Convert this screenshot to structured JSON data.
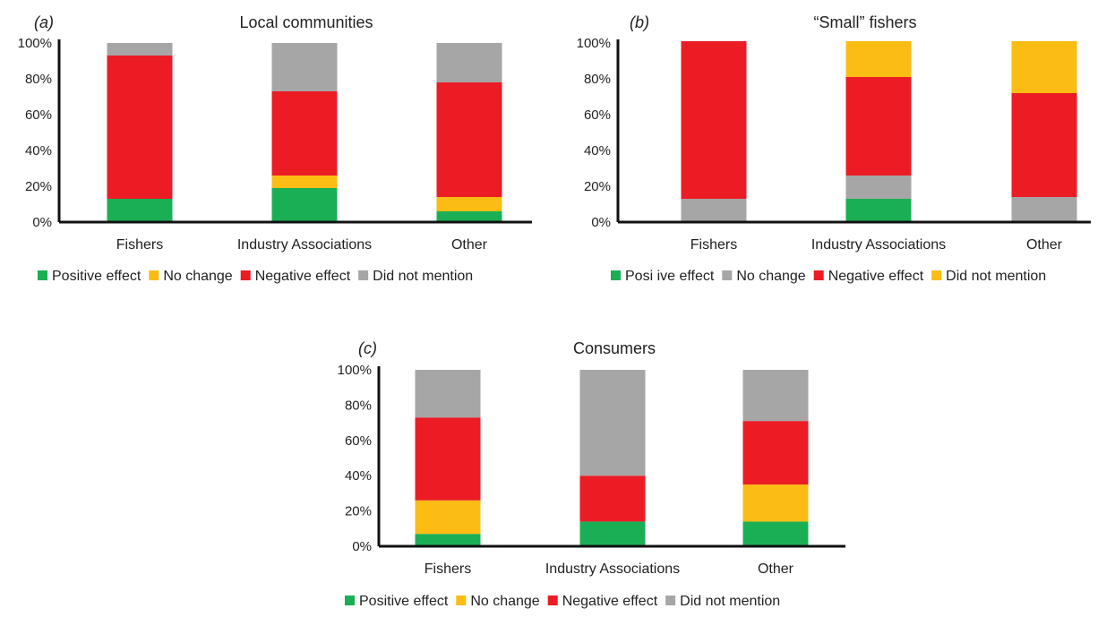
{
  "chart_data": [
    {
      "type": "bar",
      "stacked": true,
      "panel_label": "(a)",
      "title": "Local communities",
      "categories": [
        "Fishers",
        "Industry Associations",
        "Other"
      ],
      "y_ticks": [
        "0%",
        "20%",
        "40%",
        "60%",
        "80%",
        "100%"
      ],
      "ylim": [
        0,
        100
      ],
      "series": [
        {
          "name": "Positive effect",
          "color": "#1aaf54",
          "values": [
            13,
            19,
            6
          ]
        },
        {
          "name": "No change",
          "color": "#fbbd13",
          "values": [
            0,
            7,
            8
          ]
        },
        {
          "name": "Negative effect",
          "color": "#ec1c24",
          "values": [
            80,
            47,
            64
          ]
        },
        {
          "name": "Did not mention",
          "color": "#a6a6a6",
          "values": [
            7,
            27,
            22
          ]
        }
      ],
      "legend_position": "bottom"
    },
    {
      "type": "bar",
      "stacked": true,
      "panel_label": "(b)",
      "title": "“Small” fishers",
      "categories": [
        "Fishers",
        "Industry Associations",
        "Other"
      ],
      "y_ticks": [
        "0%",
        "20%",
        "40%",
        "60%",
        "80%",
        "100%"
      ],
      "ylim": [
        0,
        100
      ],
      "series": [
        {
          "name": "Posi ive effect",
          "color": "#1aaf54",
          "values": [
            0,
            13,
            0
          ]
        },
        {
          "name": "No change",
          "color": "#a6a6a6",
          "values": [
            13,
            13,
            14
          ]
        },
        {
          "name": "Negative effect",
          "color": "#ec1c24",
          "values": [
            88,
            55,
            58
          ]
        },
        {
          "name": "Did not mention",
          "color": "#fbbd13",
          "values": [
            0,
            20,
            29
          ]
        }
      ],
      "legend_position": "bottom"
    },
    {
      "type": "bar",
      "stacked": true,
      "panel_label": "(c)",
      "title": "Consumers",
      "categories": [
        "Fishers",
        "Industry Associations",
        "Other"
      ],
      "y_ticks": [
        "0%",
        "20%",
        "40%",
        "60%",
        "80%",
        "100%"
      ],
      "ylim": [
        0,
        100
      ],
      "series": [
        {
          "name": "Positive effect",
          "color": "#1aaf54",
          "values": [
            7,
            14,
            14
          ]
        },
        {
          "name": "No change",
          "color": "#fbbd13",
          "values": [
            19,
            0,
            21
          ]
        },
        {
          "name": "Negative effect",
          "color": "#ec1c24",
          "values": [
            47,
            26,
            36
          ]
        },
        {
          "name": "Did not mention",
          "color": "#a6a6a6",
          "values": [
            27,
            60,
            29
          ]
        }
      ],
      "legend_position": "bottom"
    }
  ]
}
